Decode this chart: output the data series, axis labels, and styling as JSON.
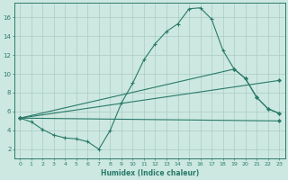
{
  "xlabel": "Humidex (Indice chaleur)",
  "background_color": "#cce8e0",
  "grid_color": "#aaccc4",
  "line_color": "#2a7a6a",
  "xlim": [
    -0.5,
    23.5
  ],
  "ylim": [
    1.0,
    17.5
  ],
  "yticks": [
    2,
    4,
    6,
    8,
    10,
    12,
    14,
    16
  ],
  "xticks": [
    0,
    1,
    2,
    3,
    4,
    5,
    6,
    7,
    8,
    9,
    10,
    11,
    12,
    13,
    14,
    15,
    16,
    17,
    18,
    19,
    20,
    21,
    22,
    23
  ],
  "line1_x": [
    0,
    1,
    2,
    3,
    4,
    5,
    6,
    7,
    8,
    9,
    10,
    11,
    12,
    13,
    14,
    15,
    16,
    17,
    18,
    19,
    20,
    21,
    22,
    23
  ],
  "line1_y": [
    5.3,
    4.9,
    4.1,
    3.5,
    3.2,
    3.1,
    2.8,
    2.0,
    4.0,
    6.9,
    9.0,
    11.5,
    13.2,
    14.5,
    15.3,
    16.9,
    17.0,
    15.8,
    12.5,
    10.5,
    9.5,
    7.5,
    6.3,
    5.8
  ],
  "line2_x": [
    0,
    19,
    20,
    21,
    22,
    23
  ],
  "line2_y": [
    5.3,
    10.5,
    9.5,
    7.5,
    6.3,
    5.8
  ],
  "line3_x": [
    0,
    23
  ],
  "line3_y": [
    5.3,
    9.3
  ],
  "line4_x": [
    0,
    23
  ],
  "line4_y": [
    5.3,
    5.0
  ]
}
